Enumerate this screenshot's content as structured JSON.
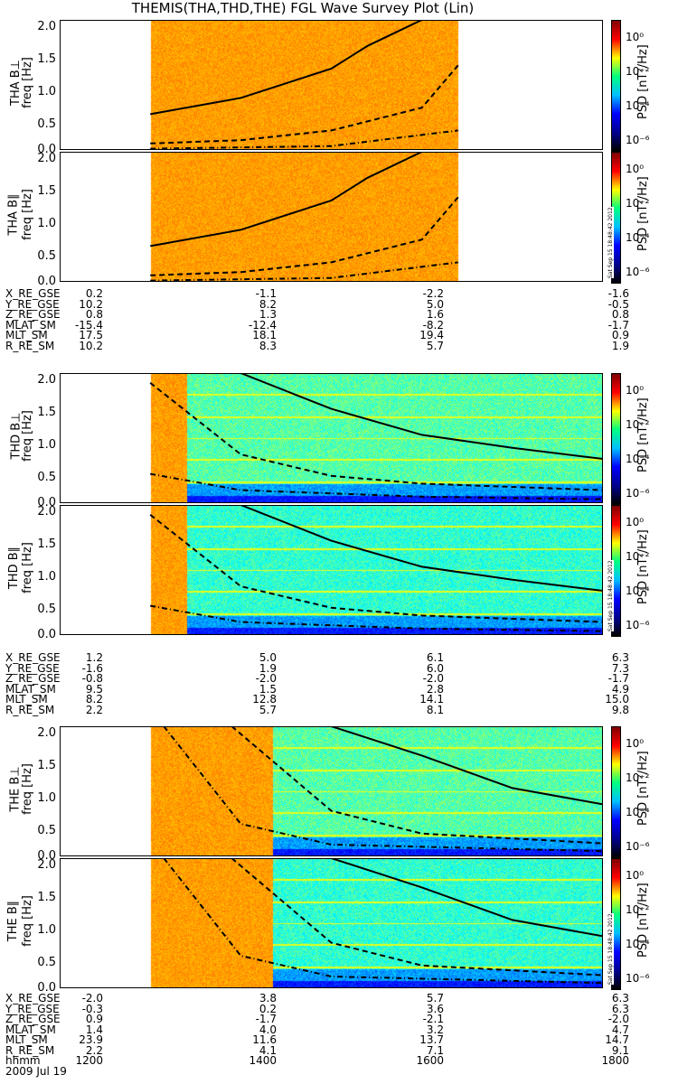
{
  "title": "THEMIS(THA,THD,THE) FGL Wave Survey Plot (Lin)",
  "y_ticks": [
    "2.0",
    "1.5",
    "1.0",
    "0.5",
    "0.0"
  ],
  "colorbar": {
    "label": "PSD [nT²/Hz]",
    "ticks": [
      "10⁰",
      "10⁻²",
      "10⁻⁴",
      "10⁻⁶"
    ],
    "stamp": "Sat Sep 15 18:48:42 2012"
  },
  "chart_data": {
    "type": "heatmap",
    "xlabel": "hhmm",
    "x_ticks": [
      "1200",
      "1400",
      "1600",
      "1800"
    ],
    "xlim": [
      "1200",
      "1800"
    ],
    "ylim": [
      0,
      2.0
    ],
    "date": "2009 Jul 19",
    "panels": [
      {
        "probe": "THA",
        "component": "B⊥",
        "label1": "THA B⊥",
        "label2": "freq [Hz]",
        "data_start": "1300",
        "data_end": "1640",
        "bright_end": "1640",
        "solid_curve": [
          [
            1300,
            0.55
          ],
          [
            1400,
            0.8
          ],
          [
            1500,
            1.25
          ],
          [
            1540,
            1.6
          ],
          [
            1600,
            2.0
          ]
        ],
        "dashed_curve": [
          [
            1300,
            0.1
          ],
          [
            1400,
            0.15
          ],
          [
            1500,
            0.3
          ],
          [
            1600,
            0.65
          ],
          [
            1640,
            1.3
          ]
        ],
        "dashdot_curve": [
          [
            1300,
            0.02
          ],
          [
            1500,
            0.06
          ],
          [
            1640,
            0.3
          ]
        ]
      },
      {
        "probe": "THA",
        "component": "B∥",
        "label1": "THA B∥",
        "label2": "freq [Hz]",
        "data_start": "1300",
        "data_end": "1640",
        "bright_end": "1640",
        "solid_curve": [
          [
            1300,
            0.55
          ],
          [
            1400,
            0.8
          ],
          [
            1500,
            1.25
          ],
          [
            1540,
            1.6
          ],
          [
            1600,
            2.0
          ]
        ],
        "dashed_curve": [
          [
            1300,
            0.1
          ],
          [
            1400,
            0.15
          ],
          [
            1500,
            0.3
          ],
          [
            1600,
            0.65
          ],
          [
            1640,
            1.3
          ]
        ],
        "dashdot_curve": [
          [
            1300,
            0.02
          ],
          [
            1500,
            0.06
          ],
          [
            1640,
            0.3
          ]
        ]
      },
      {
        "probe": "THD",
        "component": "B⊥",
        "label1": "THD B⊥",
        "label2": "freq [Hz]",
        "data_start": "1300",
        "data_end": "1800",
        "bright_end": "1340",
        "solid_curve": [
          [
            1400,
            2.0
          ],
          [
            1500,
            1.45
          ],
          [
            1600,
            1.05
          ],
          [
            1700,
            0.85
          ],
          [
            1800,
            0.68
          ]
        ],
        "dashed_curve": [
          [
            1300,
            1.85
          ],
          [
            1400,
            0.75
          ],
          [
            1500,
            0.42
          ],
          [
            1600,
            0.3
          ],
          [
            1800,
            0.2
          ]
        ],
        "dashdot_curve": [
          [
            1300,
            0.45
          ],
          [
            1400,
            0.2
          ],
          [
            1600,
            0.1
          ],
          [
            1800,
            0.06
          ]
        ]
      },
      {
        "probe": "THD",
        "component": "B∥",
        "label1": "THD B∥",
        "label2": "freq [Hz]",
        "data_start": "1300",
        "data_end": "1800",
        "bright_end": "1340",
        "solid_curve": [
          [
            1400,
            2.0
          ],
          [
            1500,
            1.45
          ],
          [
            1600,
            1.05
          ],
          [
            1700,
            0.85
          ],
          [
            1800,
            0.68
          ]
        ],
        "dashed_curve": [
          [
            1300,
            1.85
          ],
          [
            1400,
            0.75
          ],
          [
            1500,
            0.42
          ],
          [
            1600,
            0.3
          ],
          [
            1800,
            0.2
          ]
        ],
        "dashdot_curve": [
          [
            1300,
            0.45
          ],
          [
            1400,
            0.2
          ],
          [
            1600,
            0.1
          ],
          [
            1800,
            0.06
          ]
        ]
      },
      {
        "probe": "THE",
        "component": "B⊥",
        "label1": "THE B⊥",
        "label2": "freq [Hz]",
        "data_start": "1300",
        "data_end": "1800",
        "bright_end": "1435",
        "solid_curve": [
          [
            1500,
            2.0
          ],
          [
            1600,
            1.55
          ],
          [
            1700,
            1.05
          ],
          [
            1800,
            0.8
          ]
        ],
        "dashed_curve": [
          [
            1390,
            2.0
          ],
          [
            1500,
            0.7
          ],
          [
            1600,
            0.35
          ],
          [
            1800,
            0.2
          ]
        ],
        "dashdot_curve": [
          [
            1315,
            2.0
          ],
          [
            1400,
            0.5
          ],
          [
            1500,
            0.18
          ],
          [
            1800,
            0.08
          ]
        ]
      },
      {
        "probe": "THE",
        "component": "B∥",
        "label1": "THE B∥",
        "label2": "freq [Hz]",
        "data_start": "1300",
        "data_end": "1800",
        "bright_end": "1435",
        "solid_curve": [
          [
            1500,
            2.0
          ],
          [
            1600,
            1.55
          ],
          [
            1700,
            1.05
          ],
          [
            1800,
            0.8
          ]
        ],
        "dashed_curve": [
          [
            1390,
            2.0
          ],
          [
            1500,
            0.7
          ],
          [
            1600,
            0.35
          ],
          [
            1800,
            0.2
          ]
        ],
        "dashdot_curve": [
          [
            1315,
            2.0
          ],
          [
            1400,
            0.5
          ],
          [
            1500,
            0.18
          ],
          [
            1800,
            0.08
          ]
        ]
      }
    ]
  },
  "ephemeris": [
    {
      "rows": [
        {
          "label": "X_RE_GSE",
          "values": [
            "0.2",
            "-1.1",
            "-2.2",
            "-1.6"
          ]
        },
        {
          "label": "Y_RE_GSE",
          "values": [
            "10.2",
            "8.2",
            "5.0",
            "-0.5"
          ]
        },
        {
          "label": "Z_RE_GSE",
          "values": [
            "0.8",
            "1.3",
            "1.6",
            "0.8"
          ]
        },
        {
          "label": "MLAT_SM",
          "values": [
            "-15.4",
            "-12.4",
            "-8.2",
            "-1.7"
          ]
        },
        {
          "label": "MLT_SM",
          "values": [
            "17.5",
            "18.1",
            "19.4",
            "0.9"
          ]
        },
        {
          "label": "R_RE_SM",
          "values": [
            "10.2",
            "8.3",
            "5.7",
            "1.9"
          ]
        }
      ]
    },
    {
      "rows": [
        {
          "label": "X_RE_GSE",
          "values": [
            "1.2",
            "5.0",
            "6.1",
            "6.3"
          ]
        },
        {
          "label": "Y_RE_GSE",
          "values": [
            "-1.6",
            "1.9",
            "6.0",
            "7.3"
          ]
        },
        {
          "label": "Z_RE_GSE",
          "values": [
            "-0.8",
            "-2.0",
            "-2.0",
            "-1.7"
          ]
        },
        {
          "label": "MLAT_SM",
          "values": [
            "9.5",
            "1.5",
            "2.8",
            "4.9"
          ]
        },
        {
          "label": "MLT_SM",
          "values": [
            "8.2",
            "12.8",
            "14.1",
            "15.0"
          ]
        },
        {
          "label": "R_RE_SM",
          "values": [
            "2.2",
            "5.7",
            "8.1",
            "9.8"
          ]
        }
      ]
    },
    {
      "rows": [
        {
          "label": "X_RE_GSE",
          "values": [
            "-2.0",
            "3.8",
            "5.7",
            "6.3"
          ]
        },
        {
          "label": "Y_RE_GSE",
          "values": [
            "-0.3",
            "0.2",
            "3.6",
            "6.3"
          ]
        },
        {
          "label": "Z_RE_GSE",
          "values": [
            "0.9",
            "-1.7",
            "-2.1",
            "-2.0"
          ]
        },
        {
          "label": "MLAT_SM",
          "values": [
            "1.4",
            "4.0",
            "3.2",
            "4.7"
          ]
        },
        {
          "label": "MLT_SM",
          "values": [
            "23.9",
            "11.6",
            "13.7",
            "14.7"
          ]
        },
        {
          "label": "R_RE_SM",
          "values": [
            "2.2",
            "4.1",
            "7.1",
            "9.1"
          ]
        },
        {
          "label": "hhmm",
          "values": [
            "1200",
            "1400",
            "1600",
            "1800"
          ]
        },
        {
          "label": "2009 Jul 19",
          "values": [
            "",
            "",
            "",
            ""
          ]
        }
      ]
    }
  ]
}
